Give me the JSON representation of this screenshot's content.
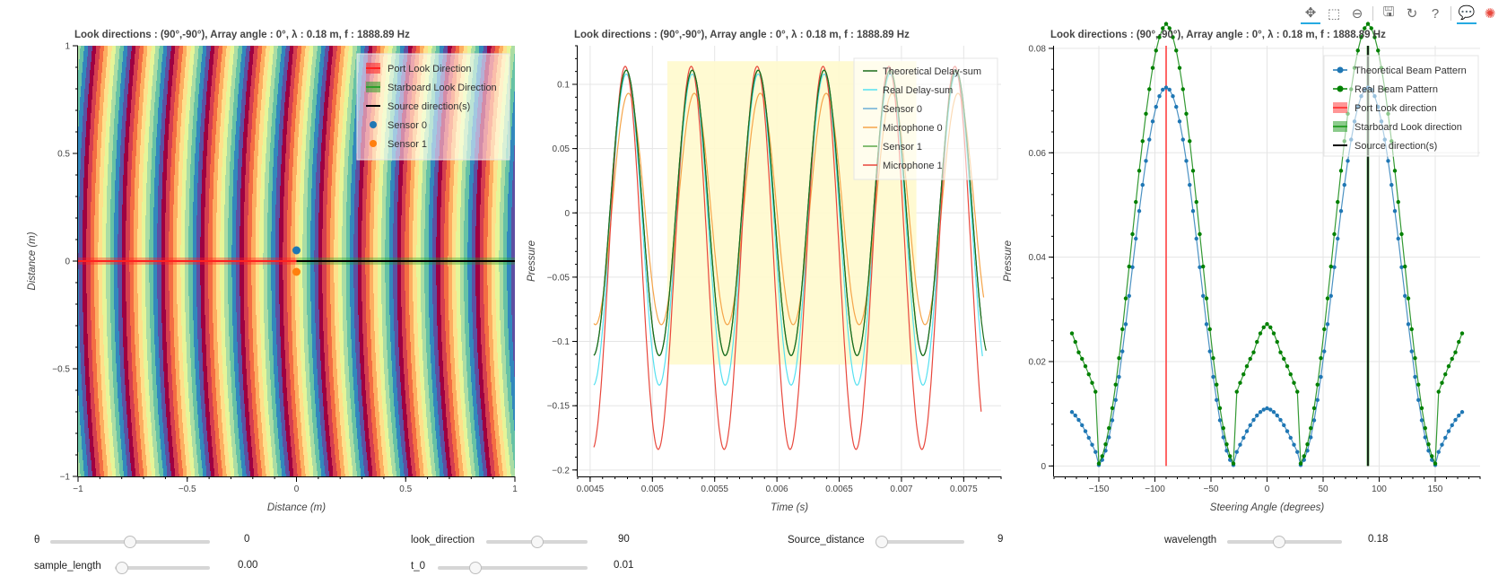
{
  "toolbar": {
    "tools": [
      {
        "name": "pan-icon",
        "glyph": "✥",
        "active": true
      },
      {
        "name": "box-zoom-icon",
        "glyph": "⬚",
        "active": false
      },
      {
        "name": "wheel-zoom-icon",
        "glyph": "⊖",
        "active": false
      },
      {
        "name": "save-icon",
        "glyph": "🖫",
        "active": false
      },
      {
        "name": "reset-icon",
        "glyph": "↻",
        "active": false
      },
      {
        "name": "help-icon",
        "glyph": "?",
        "active": false
      },
      {
        "name": "hover-icon",
        "glyph": "💬",
        "active": true
      },
      {
        "name": "bokeh-logo-icon",
        "glyph": "✺",
        "active": false
      }
    ]
  },
  "chart_data": [
    {
      "type": "heatmap",
      "title": "Look directions : (90°,-90°), Array angle : 0°, λ : 0.18 m, f : 1888.89 Hz",
      "xlabel": "Distance (m)",
      "ylabel": "Distance (m)",
      "xlim": [
        -1,
        1
      ],
      "ylim": [
        -1,
        1
      ],
      "xticks": [
        -1,
        -0.5,
        0,
        0.5,
        1
      ],
      "yticks": [
        -1,
        -0.5,
        0,
        0.5,
        1
      ],
      "xtick_labels": [
        "−1",
        "−0.5",
        "0",
        "0.5",
        "1"
      ],
      "ytick_labels": [
        "−1",
        "−0.5",
        "0",
        "0.5",
        "1"
      ],
      "wavelength": 0.18,
      "source_center": [
        10,
        0
      ],
      "palette": [
        "#5e4fa2",
        "#3288bd",
        "#66c2a5",
        "#abdda4",
        "#e6f598",
        "#fee08b",
        "#fdae61",
        "#f46d43",
        "#d53e4f",
        "#9e0142"
      ],
      "port_line": {
        "x": [
          -1,
          0
        ],
        "y": 0,
        "color": "#ff2020"
      },
      "starboard_line": {
        "x": [
          0,
          1
        ],
        "y": 0,
        "color": "#2ca02c"
      },
      "source_line": {
        "x": [
          0,
          1
        ],
        "y": 0,
        "color": "#000000"
      },
      "sensors": [
        {
          "name": "Sensor 0",
          "x": 0,
          "y": 0.05,
          "color": "#1f77b4"
        },
        {
          "name": "Sensor 1",
          "x": 0,
          "y": -0.05,
          "color": "#ff7f0e"
        }
      ],
      "legend": {
        "position": "top-right",
        "items": [
          {
            "label": "Port Look Direction",
            "kind": "band",
            "color": "#ff2020"
          },
          {
            "label": "Starboard Look Direction",
            "kind": "band",
            "color": "#2ca02c"
          },
          {
            "label": "Source direction(s)",
            "kind": "line",
            "color": "#000000"
          },
          {
            "label": "Sensor 0",
            "kind": "dot",
            "color": "#1f77b4"
          },
          {
            "label": "Sensor 1",
            "kind": "dot",
            "color": "#ff7f0e"
          }
        ]
      }
    },
    {
      "type": "line",
      "title": "Look directions : (90°,-90°), Array angle : 0°, λ : 0.18 m, f : 1888.89 Hz",
      "xlabel": "Time (s)",
      "ylabel": "Pressure",
      "xlim": [
        0.0044,
        0.0078
      ],
      "ylim": [
        -0.205,
        0.13
      ],
      "xticks": [
        0.0045,
        0.005,
        0.0055,
        0.006,
        0.0065,
        0.007,
        0.0075
      ],
      "yticks": [
        -0.2,
        -0.15,
        -0.1,
        -0.05,
        0,
        0.05,
        0.1
      ],
      "xtick_labels": [
        "0.0045",
        "0.005",
        "0.0055",
        "0.006",
        "0.0065",
        "0.007",
        "0.0075"
      ],
      "ytick_labels": [
        "−0.2",
        "−0.15",
        "−0.1",
        "−0.05",
        "0",
        "0.05",
        "0.1"
      ],
      "highlight_box": {
        "x0": 0.00512,
        "x1": 0.00712,
        "y0": -0.118,
        "y1": 0.118,
        "color": "#fffacd"
      },
      "frequency": 1888.89,
      "x_start": 0.00453,
      "x_end": 0.00768,
      "series": [
        {
          "name": "Theoretical Delay-sum",
          "color": "#1a6b1a",
          "amp": 0.111,
          "offset": 0,
          "phase": -0.55,
          "end": 0.00768
        },
        {
          "name": "Real Delay-sum",
          "color": "#55e0f0",
          "amp": 0.121,
          "offset": -0.013,
          "phase": -0.55,
          "end": 0.00765
        },
        {
          "name": "Sensor 0",
          "color": "#6baed6",
          "amp": 0.111,
          "offset": 0,
          "phase": -0.55,
          "end": 0.00764
        },
        {
          "name": "Microphone 0",
          "color": "#f5a54a",
          "amp": 0.09,
          "offset": 0.003,
          "phase": -0.75,
          "end": 0.00766
        },
        {
          "name": "Sensor 1",
          "color": "#5aa84a",
          "amp": 0.111,
          "offset": 0,
          "phase": -0.55,
          "end": 0.00764
        },
        {
          "name": "Microphone 1",
          "color": "#e8473c",
          "amp": 0.149,
          "offset": -0.035,
          "phase": -0.45,
          "end": 0.00764
        }
      ],
      "legend": {
        "position": "top-right"
      }
    },
    {
      "type": "line",
      "title": "Look directions : (90°,-90°), Array angle : 0°, λ : 0.18 m, f : 1888.89 Hz",
      "xlabel": "Steering Angle (degrees)",
      "ylabel": "Pressure",
      "xlim": [
        -190,
        190
      ],
      "ylim": [
        -0.002,
        0.0805
      ],
      "xticks": [
        -150,
        -100,
        -50,
        0,
        50,
        100,
        150
      ],
      "yticks": [
        0,
        0.02,
        0.04,
        0.06,
        0.08
      ],
      "xtick_labels": [
        "−150",
        "−100",
        "−50",
        "0",
        "50",
        "100",
        "150"
      ],
      "ytick_labels": [
        "0",
        "0.02",
        "0.04",
        "0.06",
        "0.08"
      ],
      "angle_step": 3,
      "angle_range": [
        -174,
        174
      ],
      "lobe_center": 90,
      "series": [
        {
          "name": "Theoretical Beam Pattern",
          "color": "#1f77b4",
          "peak": 0.0725,
          "base": 0.0111
        },
        {
          "name": "Real Beam Pattern",
          "color": "#008000",
          "peak": 0.0765,
          "base": 0.0273
        }
      ],
      "port_line": {
        "x": -90,
        "color": "#ff4040"
      },
      "starboard_line": {
        "x": 90,
        "color": "#2ca02c"
      },
      "source_line": {
        "x": 90,
        "color": "#000000"
      },
      "legend": {
        "position": "top-right",
        "items": [
          {
            "label": "Theoretical Beam Pattern",
            "kind": "dotline",
            "color": "#1f77b4"
          },
          {
            "label": "Real Beam Pattern",
            "kind": "dotline",
            "color": "#008000"
          },
          {
            "label": "Port Look direction",
            "kind": "band",
            "color": "#ff4040"
          },
          {
            "label": "Starboard Look direction",
            "kind": "band",
            "color": "#2ca02c"
          },
          {
            "label": "Source direction(s)",
            "kind": "line",
            "color": "#000000"
          }
        ]
      }
    }
  ],
  "widgets": [
    {
      "key": "theta",
      "label": "θ",
      "value": "0",
      "fraction": 0.5
    },
    {
      "key": "look_direction",
      "label": "look_direction",
      "value": "90",
      "fraction": 0.5
    },
    {
      "key": "source_distance",
      "label": "Source_distance",
      "value": "9",
      "fraction": 0.05
    },
    {
      "key": "wavelength",
      "label": "wavelength",
      "value": "0.18",
      "fraction": 0.45
    },
    {
      "key": "sample_length",
      "label": "sample_length",
      "value": "0.00",
      "fraction": 0.08
    },
    {
      "key": "t_0",
      "label": "t_0",
      "value": "0.01",
      "fraction": 0.25
    }
  ]
}
